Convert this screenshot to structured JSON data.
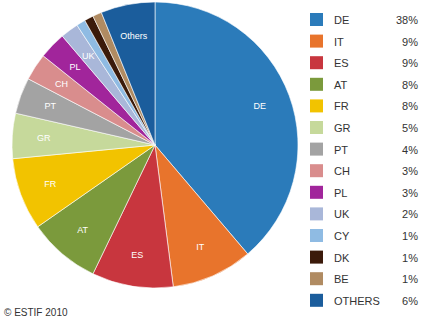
{
  "chart_data": {
    "type": "pie",
    "categories": [
      "DE",
      "IT",
      "ES",
      "AT",
      "FR",
      "GR",
      "PT",
      "CH",
      "PL",
      "UK",
      "CY",
      "DK",
      "BE",
      "OTHERS"
    ],
    "values": [
      38,
      9,
      9,
      8,
      8,
      5,
      4,
      3,
      3,
      2,
      1,
      1,
      1,
      6
    ],
    "value_labels": [
      "38%",
      "9%",
      "9%",
      "8%",
      "8%",
      "5%",
      "4%",
      "3%",
      "3%",
      "2%",
      "1%",
      "1%",
      "1%",
      "6%"
    ],
    "slice_labels": [
      "DE",
      "IT",
      "ES",
      "AT",
      "FR",
      "GR",
      "PT",
      "CH",
      "PL",
      "UK",
      null,
      null,
      null,
      "Others"
    ],
    "colors": [
      "#2b7bba",
      "#e8742c",
      "#c8363e",
      "#7b9a3c",
      "#f2c300",
      "#c6d99b",
      "#a3a3a3",
      "#d98d8d",
      "#a1259b",
      "#a9b7d9",
      "#8fbbe3",
      "#3b1a0a",
      "#b08b62",
      "#1b5d9c"
    ],
    "legend": "right",
    "source": "© ESTIF 2010"
  }
}
